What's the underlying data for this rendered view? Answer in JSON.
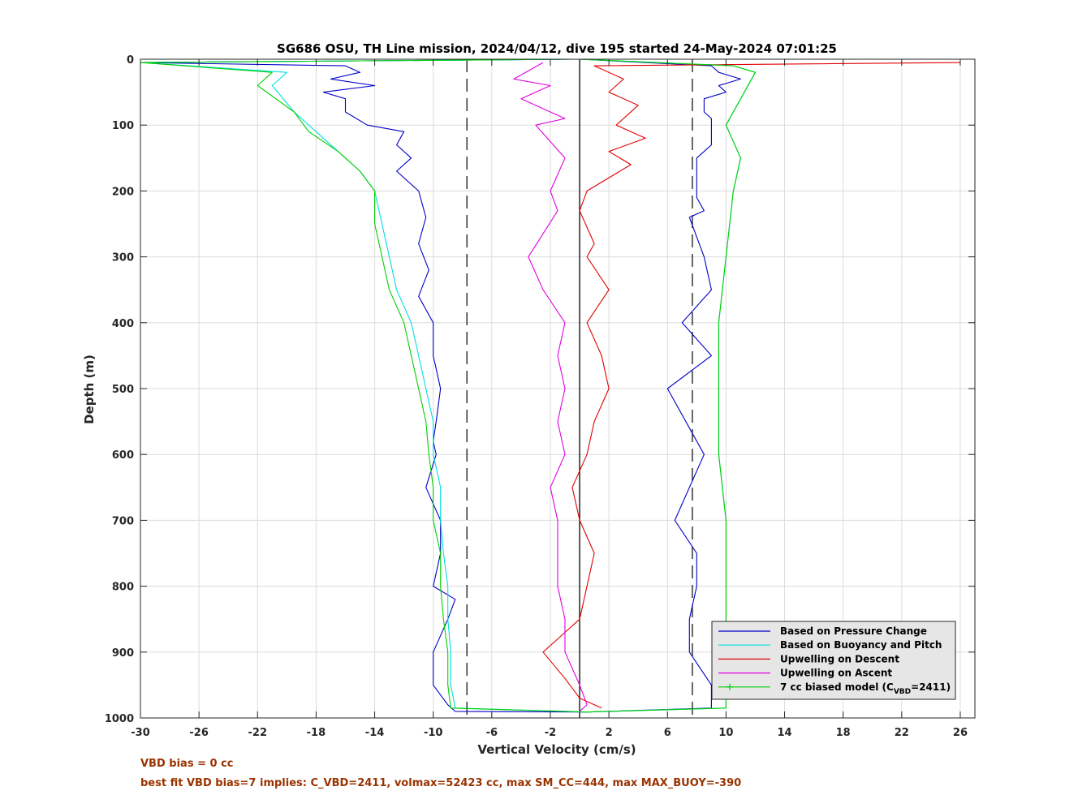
{
  "chart_data": {
    "type": "line",
    "title": "SG686 OSU, TH Line mission, 2024/04/12, dive 195 started 24-May-2024 07:01:25",
    "xlabel": "Vertical Velocity (cm/s)",
    "ylabel": "Depth (m)",
    "xlim": [
      -30,
      27
    ],
    "ylim": [
      1000,
      0
    ],
    "y_reversed": true,
    "grid": true,
    "legend_position": "bottom-right",
    "x_ticks": [
      "-30",
      "-26",
      "-22",
      "-18",
      "-14",
      "-10",
      "-6",
      "-2",
      "2",
      "6",
      "10",
      "14",
      "18",
      "22",
      "26"
    ],
    "y_ticks": [
      "0",
      "100",
      "200",
      "300",
      "400",
      "500",
      "600",
      "700",
      "800",
      "900",
      "1000"
    ],
    "reference_lines": {
      "zero": 0,
      "dashed": [
        -7.7,
        7.7
      ]
    },
    "legend": [
      {
        "label": "Based on Pressure Change",
        "color": "#0000c8",
        "marker": false
      },
      {
        "label": "Based on Buoyancy and Pitch",
        "color": "#00e0e0",
        "marker": false
      },
      {
        "label": "Upwelling on Descent",
        "color": "#e00000",
        "marker": false
      },
      {
        "label": "Upwelling on Ascent",
        "color": "#e000e0",
        "marker": false
      },
      {
        "label": "7 cc biased model (C",
        "sub": "VBD",
        "suffix": "=2411)",
        "color": "#00d000",
        "marker": true
      }
    ],
    "series": [
      {
        "name": "Based on Pressure Change",
        "color": "#0000c8",
        "x": [
          -0.5,
          -30,
          -16,
          -15,
          -17,
          -14,
          -17.5,
          -16,
          -16,
          -14.5,
          -12,
          -12.5,
          -11.5,
          -12.5,
          -11,
          -10.5,
          -11,
          -10.3,
          -11,
          -10,
          -10,
          -9.5,
          -9.8,
          -10,
          -9.8,
          -10.5,
          -9.5,
          -9.5,
          -10,
          -8.5,
          -9,
          -10,
          -10,
          -9,
          -8.5,
          0.5,
          9,
          9,
          7.5,
          7.5,
          8,
          8,
          6.5,
          8.5,
          6,
          9,
          7,
          9,
          8.5,
          7.5,
          8.5,
          8,
          8,
          8,
          8.5,
          9,
          9,
          9,
          9,
          8.5,
          8.5,
          8.5,
          10,
          9.5,
          11,
          9.5,
          9,
          0
        ],
        "y": [
          0,
          5,
          10,
          20,
          30,
          40,
          50,
          60,
          80,
          100,
          110,
          130,
          150,
          170,
          200,
          240,
          280,
          320,
          360,
          400,
          450,
          500,
          550,
          580,
          600,
          650,
          700,
          750,
          800,
          820,
          850,
          900,
          950,
          980,
          990,
          991,
          985,
          950,
          900,
          850,
          800,
          750,
          700,
          600,
          500,
          450,
          400,
          350,
          300,
          240,
          230,
          210,
          180,
          150,
          140,
          130,
          110,
          100,
          90,
          80,
          70,
          60,
          50,
          40,
          30,
          20,
          10,
          0
        ]
      },
      {
        "name": "Based on Buoyancy and Pitch",
        "color": "#00e0e0",
        "x": [
          -0.5,
          -30,
          -20,
          -21,
          -19.5,
          -18,
          -16.5,
          -15,
          -14,
          -13.5,
          -13,
          -12.5,
          -11.5,
          -11,
          -10.5,
          -10,
          -10,
          -9.5,
          -9.5,
          -9.3,
          -9,
          -9,
          -8.8,
          -8.8,
          -8.5,
          0.5,
          10,
          10,
          10,
          10,
          10,
          10,
          9.5,
          9.5,
          9.5,
          10,
          10.5,
          11,
          10,
          12,
          10.5,
          0
        ],
        "y": [
          0,
          5,
          20,
          40,
          80,
          110,
          140,
          170,
          200,
          250,
          300,
          350,
          400,
          450,
          500,
          550,
          600,
          650,
          700,
          750,
          800,
          850,
          900,
          950,
          985,
          991,
          985,
          950,
          900,
          850,
          800,
          700,
          600,
          500,
          400,
          300,
          200,
          150,
          100,
          20,
          10,
          0
        ]
      },
      {
        "name": "Upwelling on Descent",
        "color": "#e00000",
        "x": [
          26,
          1,
          3,
          2,
          4,
          2.5,
          4.5,
          2,
          3.5,
          0.5,
          0,
          1,
          0.5,
          2,
          0.5,
          1.5,
          2,
          1,
          0.5,
          -0.5,
          0,
          1,
          0.5,
          0,
          -1.5,
          -2.5,
          -1,
          0,
          1.5
        ],
        "y": [
          5,
          10,
          30,
          50,
          70,
          100,
          120,
          140,
          160,
          200,
          230,
          280,
          300,
          350,
          400,
          450,
          500,
          550,
          600,
          650,
          700,
          750,
          800,
          850,
          880,
          900,
          940,
          970,
          985
        ]
      },
      {
        "name": "Upwelling on Ascent",
        "color": "#e000e0",
        "x": [
          -2.5,
          -4.5,
          -2,
          -4,
          -1,
          -3,
          -1,
          -2,
          -1.5,
          -3.5,
          -2.5,
          -1,
          -1.5,
          -1,
          -1.5,
          -1,
          -2,
          -1.5,
          -1.5,
          -1,
          -1,
          0,
          0.5,
          0
        ],
        "y": [
          5,
          30,
          40,
          60,
          90,
          100,
          150,
          200,
          230,
          300,
          350,
          400,
          450,
          500,
          550,
          600,
          650,
          700,
          800,
          850,
          900,
          950,
          980,
          990
        ]
      },
      {
        "name": "7 cc biased model (CVBD=2411)",
        "color": "#00d000",
        "x": [
          -0.5,
          -30,
          -21,
          -22,
          -19.5,
          -18.5,
          -16.5,
          -15,
          -14,
          -14,
          -13.5,
          -13,
          -12,
          -11.5,
          -11,
          -10.5,
          -10.3,
          -10,
          -10,
          -9.5,
          -9.5,
          -9.3,
          -9,
          -9,
          -8.8,
          0.5,
          10,
          10,
          10,
          10,
          10,
          10,
          9.5,
          9.5,
          9.5,
          10,
          10.5,
          11,
          10,
          12,
          10.5,
          0
        ],
        "y": [
          0,
          5,
          20,
          40,
          80,
          110,
          140,
          170,
          200,
          250,
          300,
          350,
          400,
          450,
          500,
          550,
          600,
          650,
          700,
          750,
          800,
          850,
          900,
          950,
          985,
          991,
          985,
          950,
          900,
          850,
          800,
          700,
          600,
          500,
          400,
          300,
          200,
          150,
          100,
          20,
          10,
          0
        ]
      }
    ]
  },
  "notes": {
    "line1": "VBD bias = 0 cc",
    "line2": "best fit VBD bias=7 implies: C_VBD=2411, volmax=52423 cc, max SM_CC=444, max MAX_BUOY=-390",
    "color": "#993300"
  }
}
